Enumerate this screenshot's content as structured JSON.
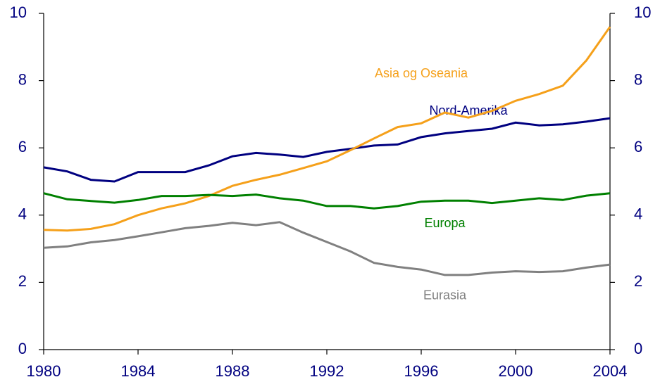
{
  "chart_data": {
    "type": "line",
    "x": [
      1980,
      1981,
      1982,
      1983,
      1984,
      1985,
      1986,
      1987,
      1988,
      1989,
      1990,
      1991,
      1992,
      1993,
      1994,
      1995,
      1996,
      1997,
      1998,
      1999,
      2000,
      2001,
      2002,
      2003,
      2004
    ],
    "xlim": [
      1980,
      2004
    ],
    "xticks": [
      1980,
      1984,
      1988,
      1992,
      1996,
      2000,
      2004
    ],
    "ylim": [
      0,
      10
    ],
    "yticks": [
      0,
      2,
      4,
      6,
      8,
      10
    ],
    "y2lim": [
      0,
      10
    ],
    "y2ticks": [
      0,
      2,
      4,
      6,
      8,
      10
    ],
    "series": [
      {
        "name": "Nord-Amerika",
        "color": "#000080",
        "values": [
          5.42,
          5.3,
          5.05,
          5.0,
          5.28,
          5.28,
          5.28,
          5.48,
          5.75,
          5.85,
          5.8,
          5.73,
          5.88,
          5.97,
          6.07,
          6.1,
          6.32,
          6.43,
          6.5,
          6.57,
          6.75,
          6.67,
          6.7,
          6.78,
          6.88
        ]
      },
      {
        "name": "Asia og Oseania",
        "color": "#f5a01a",
        "values": [
          3.56,
          3.54,
          3.59,
          3.73,
          4.0,
          4.2,
          4.35,
          4.57,
          4.87,
          5.05,
          5.2,
          5.4,
          5.6,
          5.93,
          6.28,
          6.62,
          6.73,
          7.05,
          6.9,
          7.1,
          7.4,
          7.6,
          7.85,
          8.6,
          9.6
        ]
      },
      {
        "name": "Europa",
        "color": "#008000",
        "values": [
          4.65,
          4.47,
          4.42,
          4.37,
          4.45,
          4.57,
          4.57,
          4.6,
          4.57,
          4.61,
          4.5,
          4.43,
          4.27,
          4.27,
          4.2,
          4.27,
          4.4,
          4.43,
          4.43,
          4.36,
          4.43,
          4.5,
          4.45,
          4.58,
          4.65
        ]
      },
      {
        "name": "Eurasia",
        "color": "#808080",
        "values": [
          3.03,
          3.07,
          3.19,
          3.26,
          3.37,
          3.49,
          3.61,
          3.68,
          3.77,
          3.7,
          3.79,
          3.48,
          3.2,
          2.92,
          2.58,
          2.46,
          2.38,
          2.22,
          2.22,
          2.29,
          2.33,
          2.31,
          2.33,
          2.44,
          2.53
        ]
      }
    ]
  }
}
